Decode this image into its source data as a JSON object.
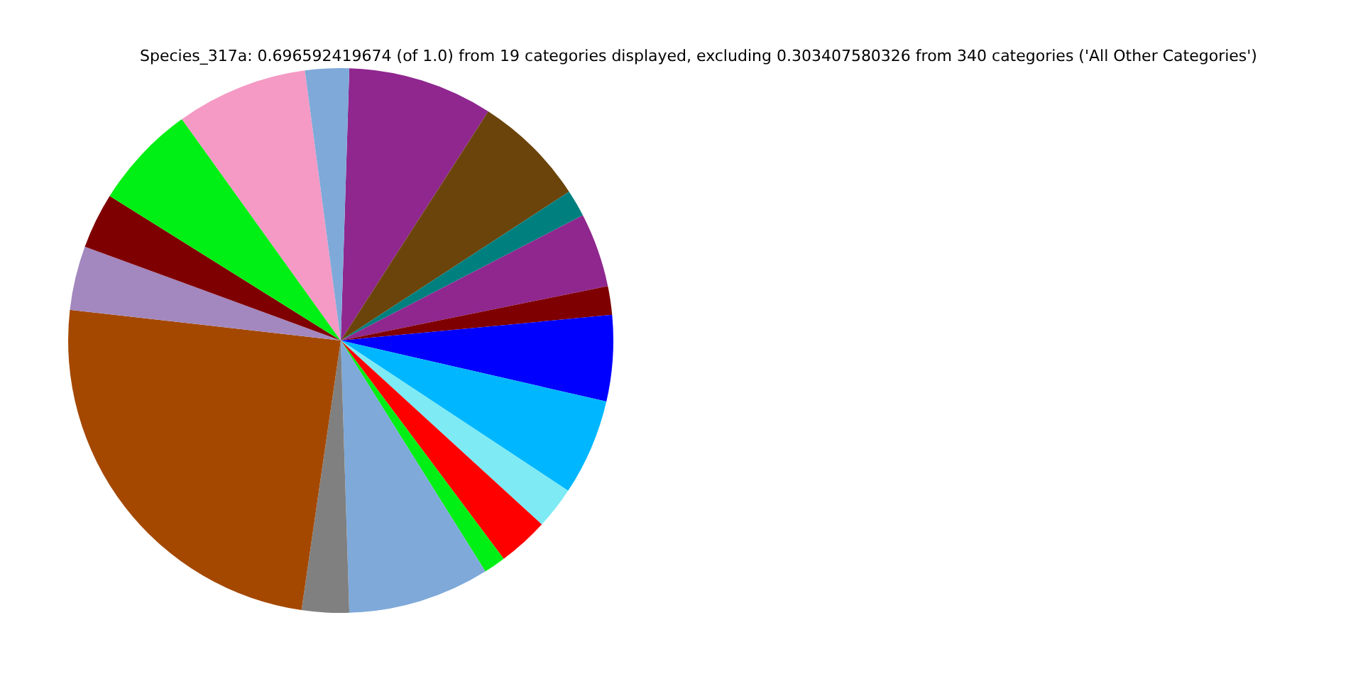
{
  "chart_data": {
    "type": "pie",
    "title": "Species_317a: 0.696592419674 (of 1.0) from 19 categories displayed, excluding 0.303407580326 from 340 categories ('All Other Categories')",
    "categories": [
      null,
      null,
      null,
      null,
      null,
      null,
      null,
      null,
      null,
      null,
      null,
      null,
      null,
      null,
      null,
      null,
      null,
      null
    ],
    "values": [
      8.6,
      6.7,
      1.6,
      4.4,
      1.7,
      5.1,
      5.7,
      2.5,
      3.0,
      1.3,
      8.4,
      2.8,
      24.5,
      3.8,
      3.3,
      6.2,
      7.8,
      2.6
    ],
    "colors": [
      "#8f278f",
      "#6b440b",
      "#007f7f",
      "#8f278f",
      "#7f0000",
      "#0000ff",
      "#00b7ff",
      "#7deaf4",
      "#ff0000",
      "#00ef14",
      "#7ea9d9",
      "#808080",
      "#a44800",
      "#a387bf",
      "#7f0000",
      "#00ef14",
      "#f49ac4",
      "#7ea9d9"
    ],
    "legend": false
  }
}
